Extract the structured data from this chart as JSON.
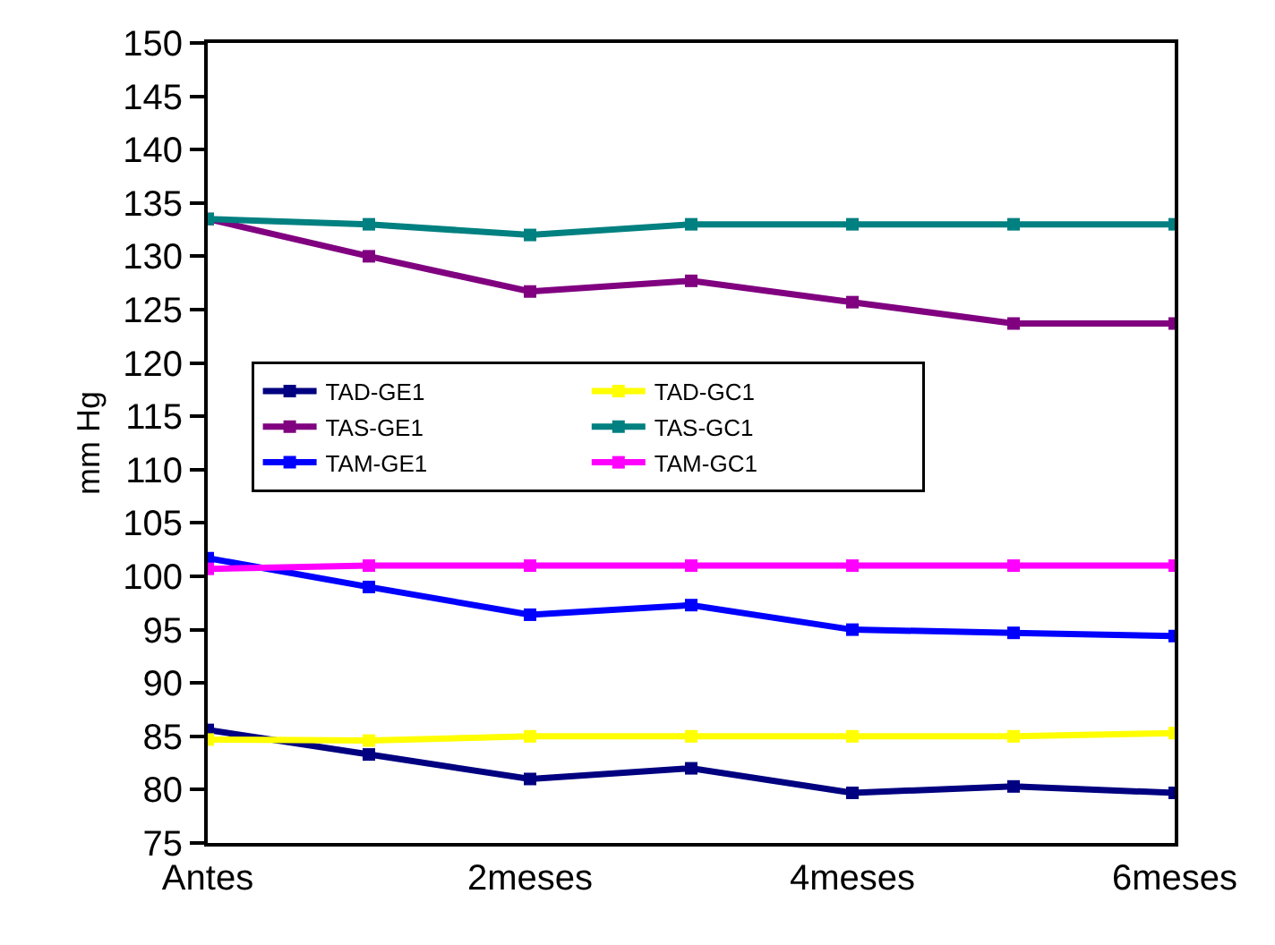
{
  "chart_data": {
    "type": "line",
    "ylabel": "mm Hg",
    "categories": [
      "Antes",
      null,
      "2meses",
      null,
      "4meses",
      null,
      "6meses"
    ],
    "ylim": [
      75,
      150
    ],
    "yticks": [
      75,
      80,
      85,
      90,
      95,
      100,
      105,
      110,
      115,
      120,
      125,
      130,
      135,
      140,
      145,
      150
    ],
    "legend": "left",
    "marker": "square",
    "line_style": "solid",
    "series": [
      {
        "name": "TAD-GE1",
        "color": "#000080",
        "values": [
          85.6,
          83.3,
          81,
          82,
          79.7,
          80.3,
          79.7
        ]
      },
      {
        "name": "TAD-GC1",
        "color": "#ffff00",
        "values": [
          84.7,
          84.6,
          85,
          85,
          85,
          85,
          85.3
        ]
      },
      {
        "name": "TAS-GE1",
        "color": "#800080",
        "values": [
          133.5,
          130,
          126.7,
          127.7,
          125.7,
          123.7,
          123.7
        ]
      },
      {
        "name": "TAS-GC1",
        "color": "#008080",
        "values": [
          133.5,
          133,
          132,
          133,
          133,
          133,
          133
        ]
      },
      {
        "name": "TAM-GE1",
        "color": "#0000ff",
        "values": [
          101.7,
          99,
          96.4,
          97.3,
          95,
          94.7,
          94.4
        ]
      },
      {
        "name": "TAM-GC1",
        "color": "#ff00ff",
        "values": [
          100.7,
          101,
          101,
          101,
          101,
          101,
          101
        ]
      }
    ]
  }
}
